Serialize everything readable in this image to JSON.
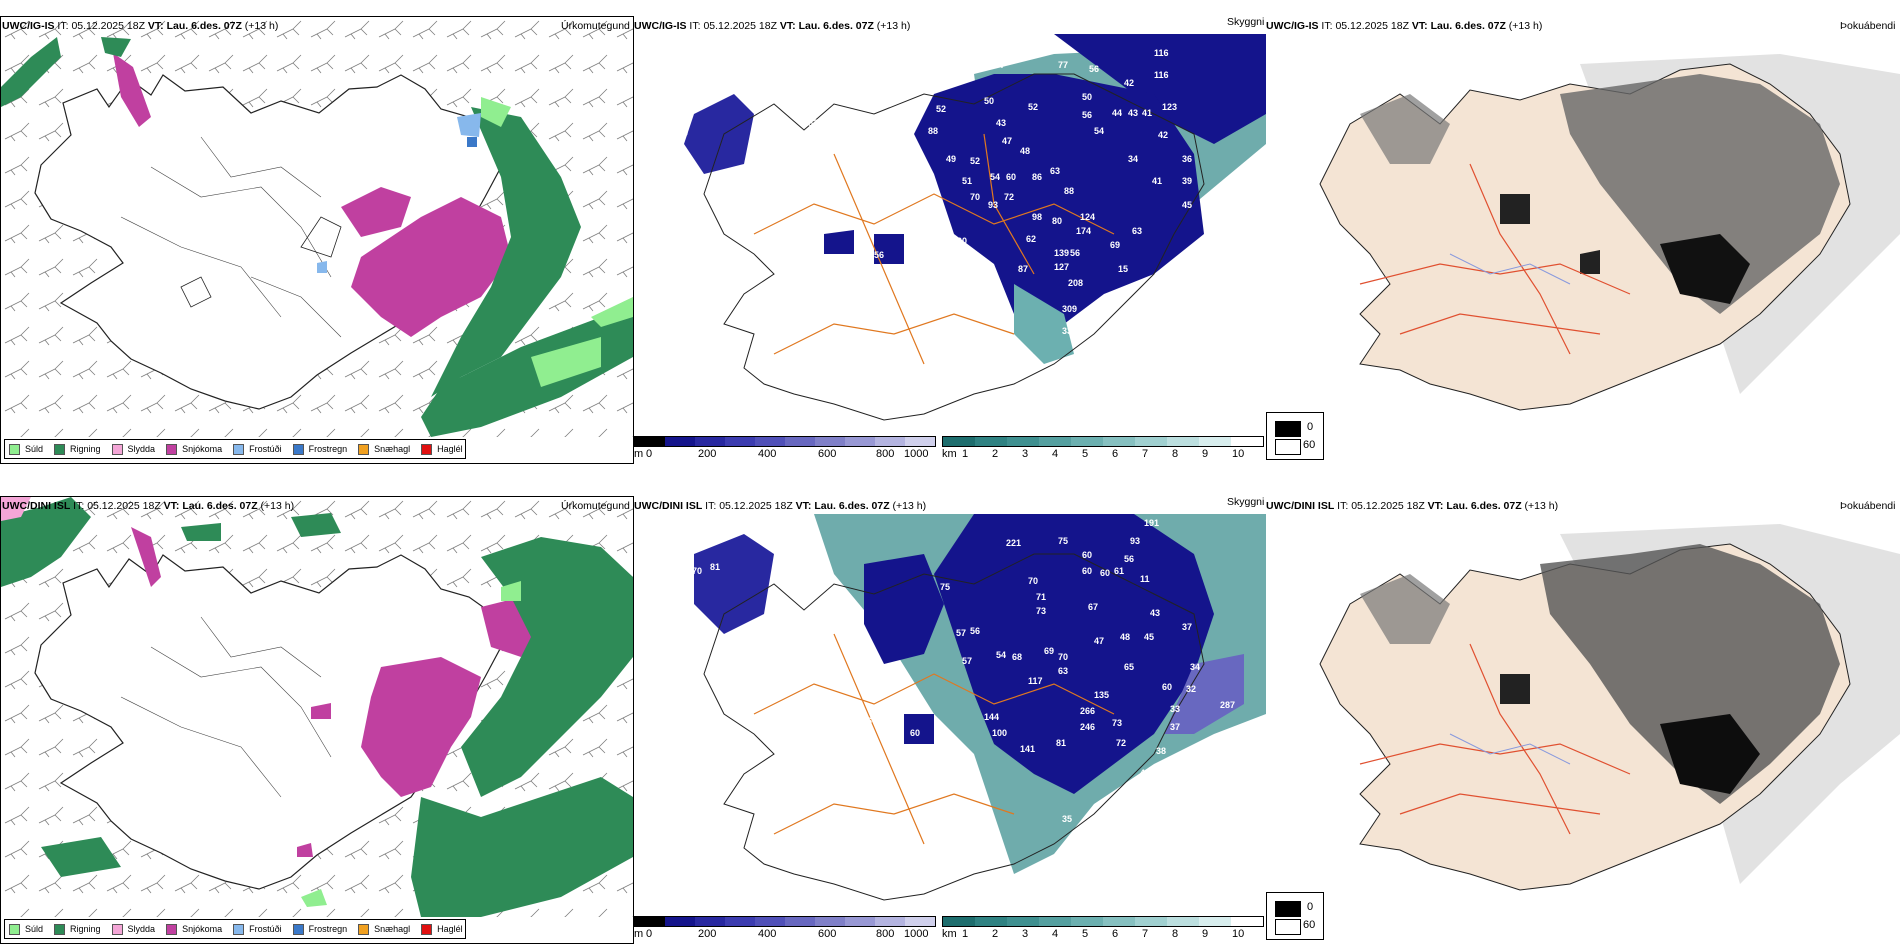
{
  "rows": [
    {
      "model": "UWC/IG-IS",
      "it_label": "IT:",
      "it_value": "05.12.2025 18Z",
      "vt_label": "VT:",
      "vt_value": "Lau. 6.des. 07Z",
      "lead": "(+13 h)"
    },
    {
      "model": "UWC/DINI ISL",
      "it_label": "IT:",
      "it_value": "05.12.2025 18Z",
      "vt_label": "VT:",
      "vt_value": "Lau. 6.des. 07Z",
      "lead": "(+13 h)"
    }
  ],
  "panel_titles": {
    "precip": "Úrkomutegund",
    "visibility": "Skyggni",
    "fog": "Þokuábendi"
  },
  "precip_legend": [
    {
      "label": "Súld",
      "color": "#90ee90"
    },
    {
      "label": "Rigning",
      "color": "#2e8b57"
    },
    {
      "label": "Slydda",
      "color": "#f4a6d7"
    },
    {
      "label": "Snjókoma",
      "color": "#c040a0"
    },
    {
      "label": "Frostúði",
      "color": "#87b8ec"
    },
    {
      "label": "Frostregn",
      "color": "#3a78c8"
    },
    {
      "label": "Snæhagl",
      "color": "#f0a020"
    },
    {
      "label": "Haglél",
      "color": "#e01010"
    }
  ],
  "visibility_scale": {
    "m_unit": "m",
    "m_ticks": [
      "0",
      "200",
      "400",
      "600",
      "800",
      "1000"
    ],
    "km_unit": "km",
    "km_ticks": [
      "1",
      "2",
      "3",
      "4",
      "5",
      "6",
      "7",
      "8",
      "9",
      "10"
    ],
    "m_colors": [
      "#000000",
      "#14148c",
      "#2828a0",
      "#3c3cb0",
      "#5050b8",
      "#6868c0",
      "#8080c8",
      "#9898d4",
      "#b4b4e0",
      "#d0d0ec"
    ],
    "km_colors": [
      "#1e6e6e",
      "#2f8282",
      "#3f9090",
      "#55a0a0",
      "#6cb0b0",
      "#86c0c0",
      "#a0d0d0",
      "#bcdfdf",
      "#d8eeee",
      "#ffffff"
    ]
  },
  "fog_legend": {
    "top": "0",
    "bottom": "60"
  },
  "visibility_numbers_top": [
    "977",
    "77",
    "56",
    "116",
    "116",
    "42",
    "50",
    "123",
    "56",
    "44",
    "43",
    "41",
    "52",
    "54",
    "42",
    "36",
    "34",
    "39",
    "41",
    "43",
    "69",
    "53",
    "62",
    "64",
    "65",
    "49",
    "52",
    "51",
    "54",
    "60",
    "63",
    "86",
    "72",
    "70",
    "93",
    "88",
    "98",
    "80",
    "124",
    "174",
    "45",
    "63",
    "61",
    "100",
    "62",
    "139",
    "56",
    "69",
    "56",
    "87",
    "127",
    "15",
    "208",
    "6",
    "309",
    "33",
    "52",
    "50",
    "88",
    "47",
    "48"
  ],
  "visibility_numbers_bottom": [
    "191",
    "221",
    "75",
    "93",
    "60",
    "56",
    "60",
    "60",
    "61",
    "11",
    "70",
    "71",
    "73",
    "67",
    "43",
    "37",
    "47",
    "48",
    "45",
    "53",
    "72",
    "83",
    "81",
    "70",
    "81",
    "63",
    "54",
    "68",
    "57",
    "56",
    "117",
    "69",
    "70",
    "63",
    "65",
    "60",
    "34",
    "32",
    "144",
    "100",
    "141",
    "81",
    "266",
    "246",
    "73",
    "72",
    "135",
    "33",
    "37",
    "38",
    "49",
    "287",
    "60",
    "76",
    "35",
    "54",
    "75",
    "57"
  ]
}
